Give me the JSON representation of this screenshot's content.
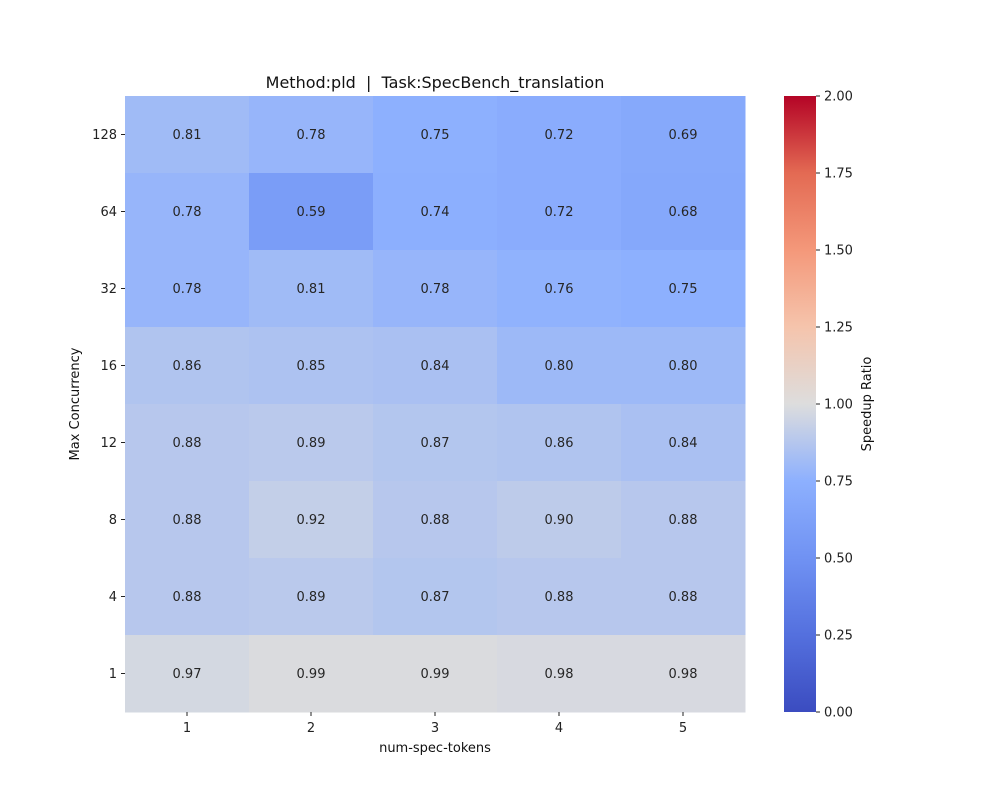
{
  "chart_data": {
    "type": "heatmap",
    "title": "Method:pld  |  Task:SpecBench_translation",
    "xlabel": "num-spec-tokens",
    "ylabel": "Max Concurrency",
    "x_categories": [
      "1",
      "2",
      "3",
      "4",
      "5"
    ],
    "y_categories": [
      "128",
      "64",
      "32",
      "16",
      "12",
      "8",
      "4",
      "1"
    ],
    "values": [
      [
        0.81,
        0.78,
        0.75,
        0.72,
        0.69
      ],
      [
        0.78,
        0.59,
        0.74,
        0.72,
        0.68
      ],
      [
        0.78,
        0.81,
        0.78,
        0.76,
        0.75
      ],
      [
        0.86,
        0.85,
        0.84,
        0.8,
        0.8
      ],
      [
        0.88,
        0.89,
        0.87,
        0.86,
        0.84
      ],
      [
        0.88,
        0.92,
        0.88,
        0.9,
        0.88
      ],
      [
        0.88,
        0.89,
        0.87,
        0.88,
        0.88
      ],
      [
        0.97,
        0.99,
        0.99,
        0.98,
        0.98
      ]
    ],
    "colorbar": {
      "label": "Speedup Ratio",
      "range": [
        0.0,
        2.0
      ],
      "ticks": [
        "0.00",
        "0.25",
        "0.50",
        "0.75",
        "1.00",
        "1.25",
        "1.50",
        "1.75",
        "2.00"
      ],
      "colormap": "coolwarm"
    }
  }
}
